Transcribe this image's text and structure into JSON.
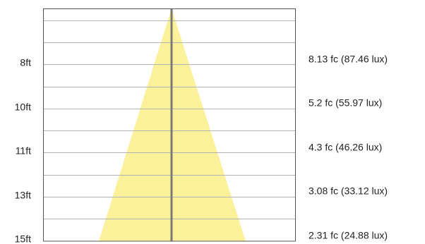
{
  "rows": [
    {
      "height": "8ft",
      "illuminance": "8.13 fc (87.46 lux)"
    },
    {
      "height": "10ft",
      "illuminance": "5.2 fc (55.97 lux)"
    },
    {
      "height": "11ft",
      "illuminance": "4.3 fc (46.26 lux)"
    },
    {
      "height": "13ft",
      "illuminance": "3.08 fc (33.12 lux)"
    },
    {
      "height": "15ft",
      "illuminance": "2.31 fc (24.88 lux)"
    }
  ]
}
